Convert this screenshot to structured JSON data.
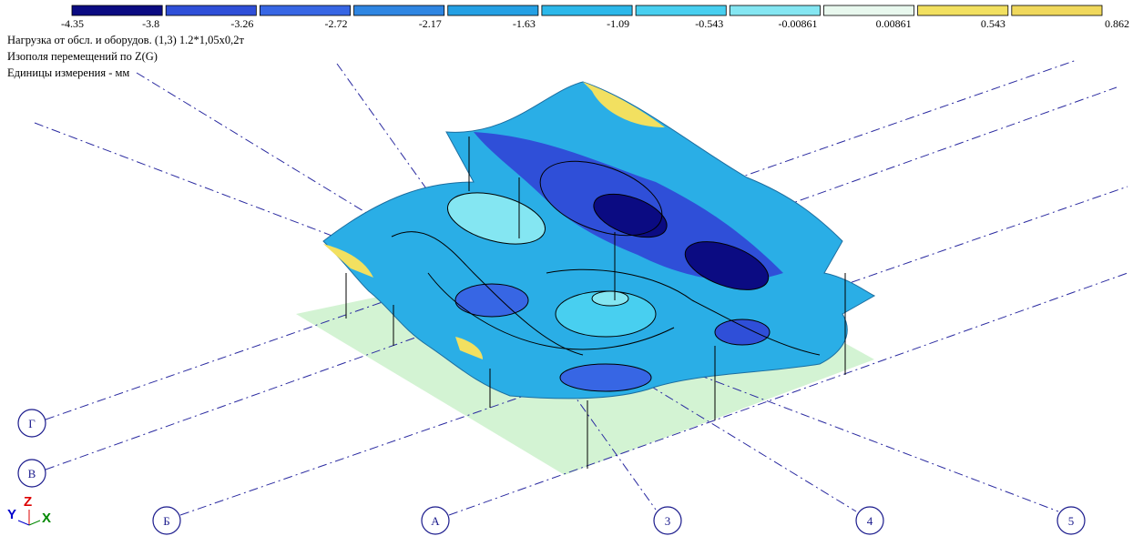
{
  "legend": {
    "labels": [
      -4.35,
      -3.8,
      -3.26,
      -2.72,
      -2.17,
      -1.63,
      -1.09,
      -0.543,
      -0.00861,
      0.00861,
      0.543,
      0.862
    ],
    "colors": [
      "#0b0b82",
      "#2f4fd8",
      "#3766e4",
      "#2f86e2",
      "#24a0e4",
      "#2cb8ea",
      "#48cff0",
      "#84e6f2",
      "#e8f8ee",
      "#f2e060",
      "#f0d85c"
    ]
  },
  "info": [
    "Нагрузка от обсл. и оборудов. (1,3) 1.2*1,05х0,2т",
    "Изополя  перемещений по Z(G)",
    "Единицы измерения - мм"
  ],
  "axes": [
    "Г",
    "В",
    "Б",
    "А",
    "3",
    "4",
    "5"
  ],
  "triad": [
    "Y",
    "Z",
    "X"
  ]
}
